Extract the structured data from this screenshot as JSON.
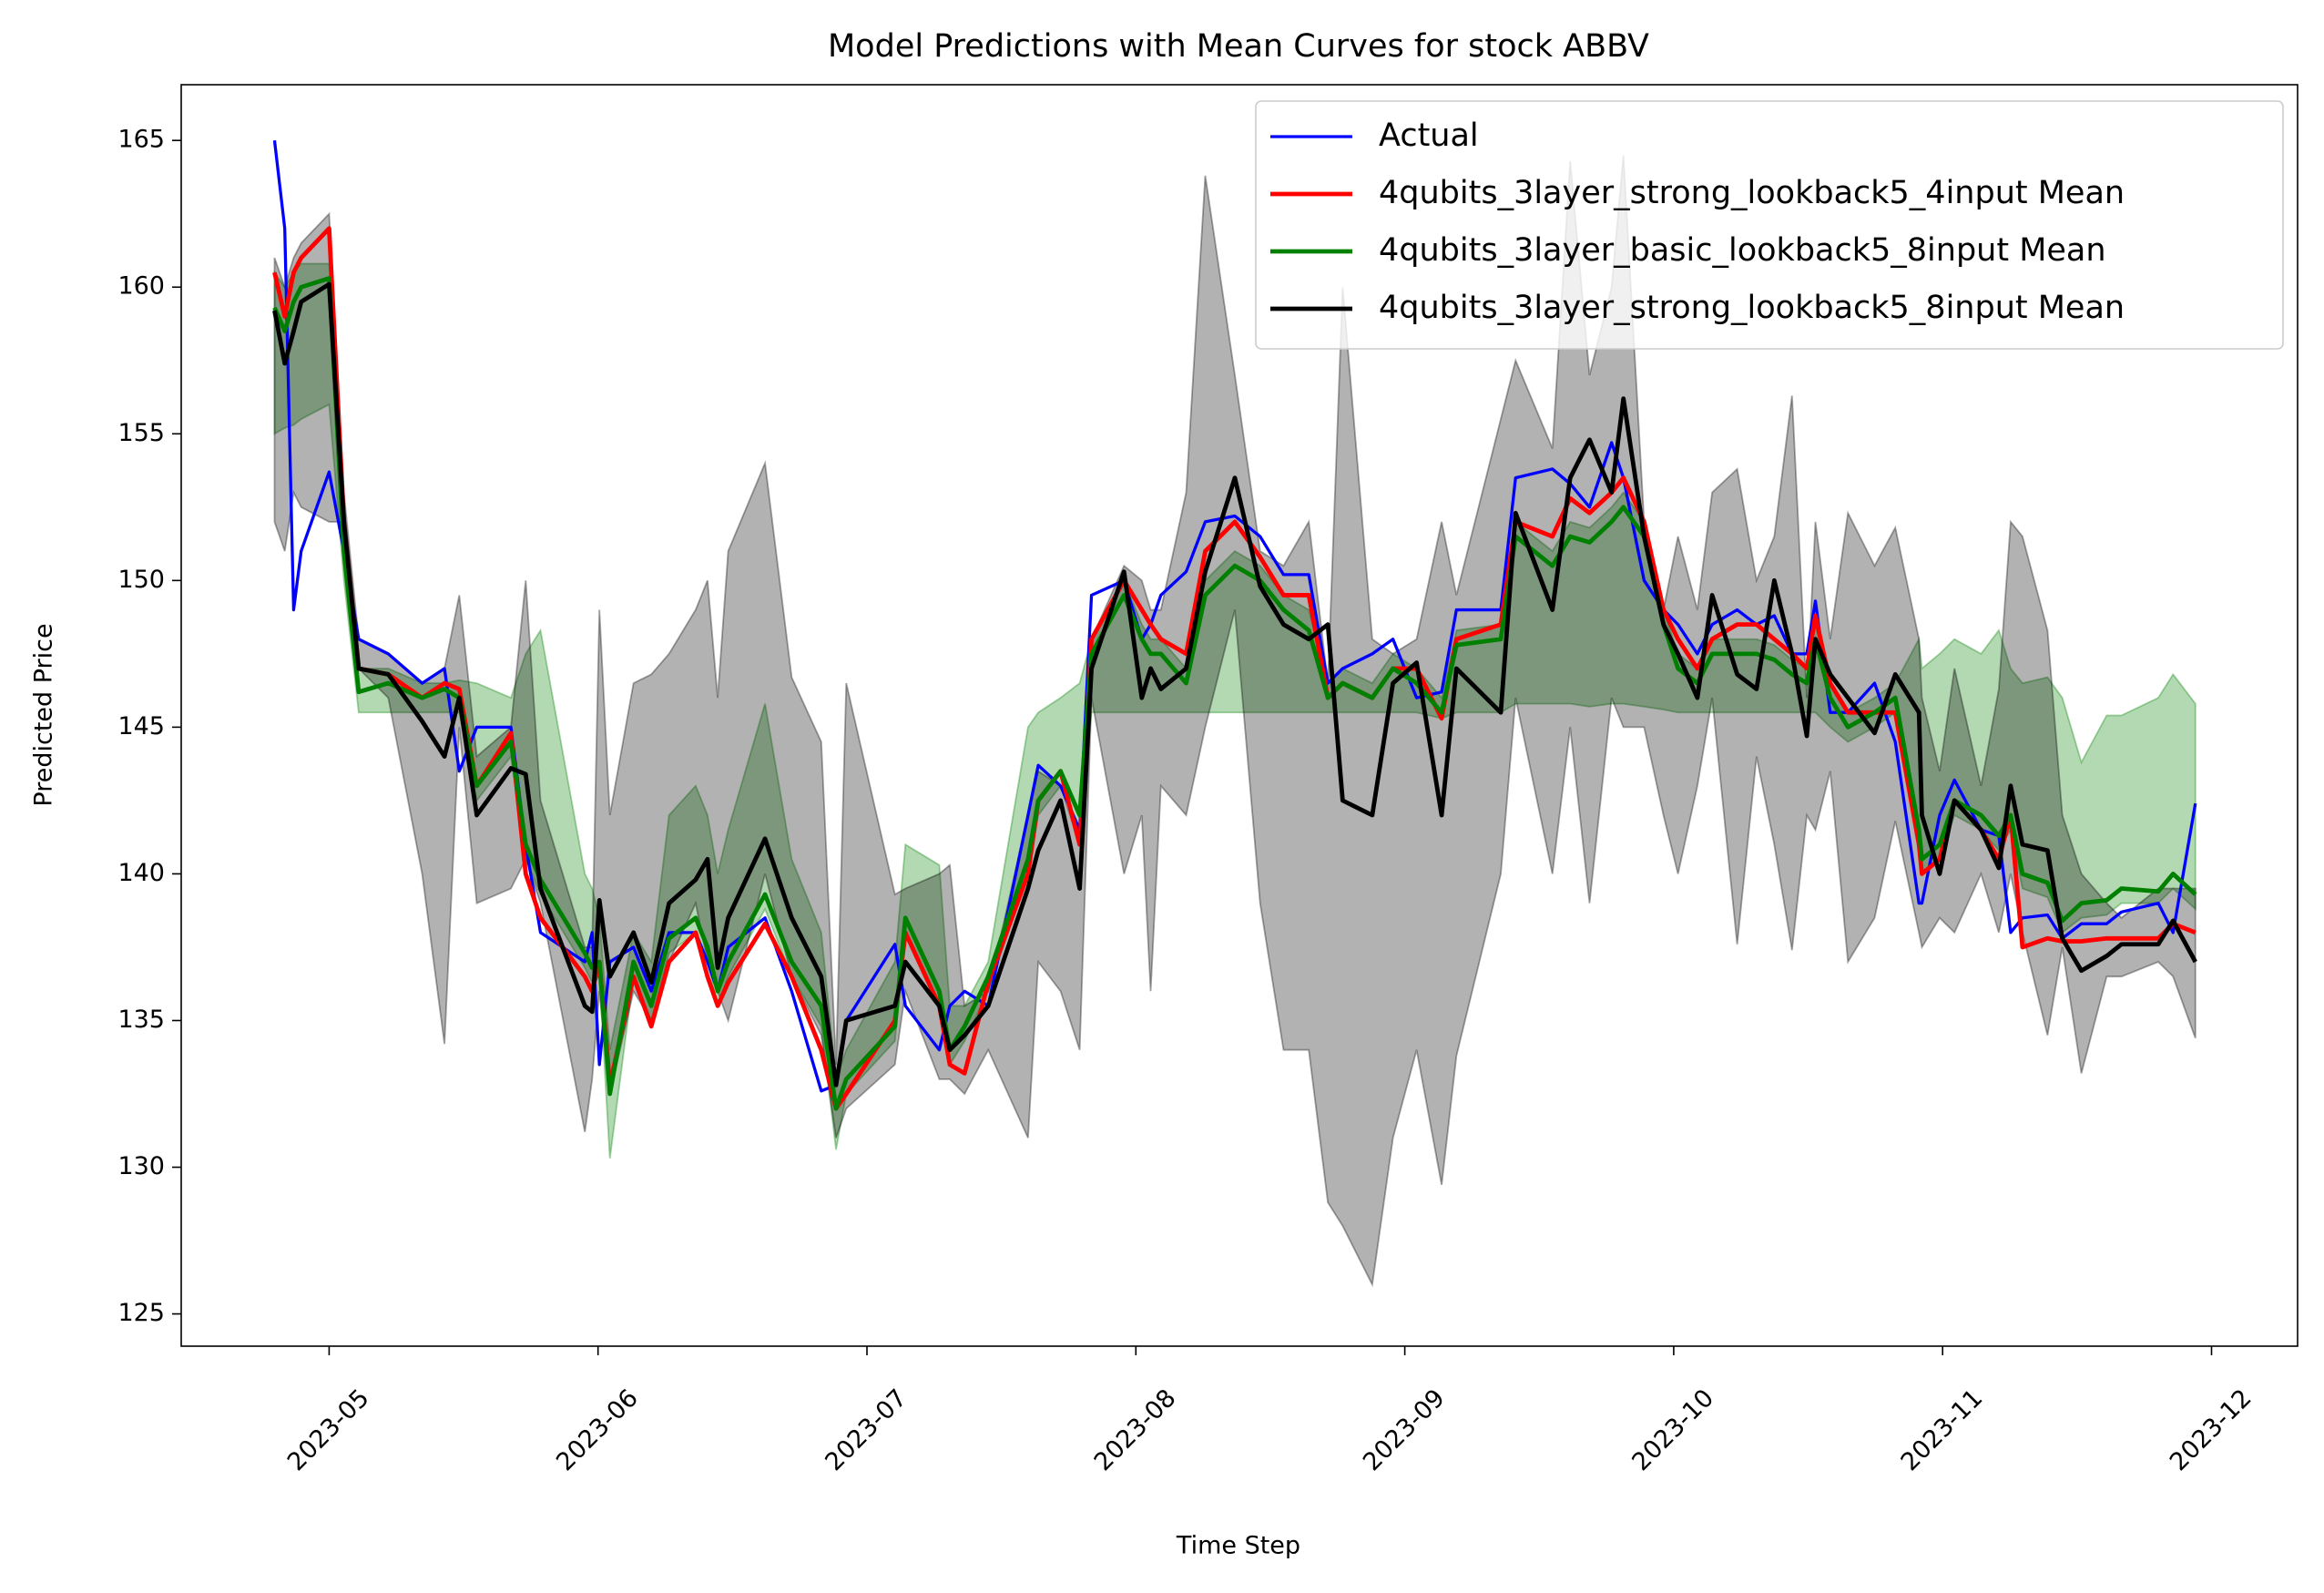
{
  "chart_data": {
    "type": "line",
    "title": "Model Predictions with Mean Curves for stock ABBV",
    "xlabel": "Time Step",
    "ylabel": "Predicted Price",
    "x": [
      4.797,
      4.835,
      4.868,
      4.896,
      5.0,
      5.055,
      5.11,
      5.22,
      5.346,
      5.429,
      5.484,
      5.549,
      5.676,
      5.731,
      5.786,
      5.951,
      5.978,
      6.005,
      6.044,
      6.132,
      6.198,
      6.264,
      6.363,
      6.407,
      6.445,
      6.484,
      6.621,
      6.72,
      6.83,
      6.885,
      6.923,
      7.104,
      7.143,
      7.269,
      7.308,
      7.363,
      7.451,
      7.599,
      7.637,
      7.72,
      7.791,
      7.835,
      7.956,
      8.022,
      8.055,
      8.093,
      8.187,
      8.258,
      8.368,
      8.462,
      8.549,
      8.643,
      8.714,
      8.769,
      8.879,
      8.956,
      9.044,
      9.137,
      9.192,
      9.357,
      9.412,
      9.549,
      9.615,
      9.687,
      9.769,
      9.813,
      9.89,
      9.962,
      10.016,
      10.088,
      10.143,
      10.236,
      10.308,
      10.374,
      10.44,
      10.495,
      10.527,
      10.582,
      10.648,
      10.747,
      10.824,
      10.912,
      10.923,
      10.989,
      11.044,
      11.143,
      11.209,
      11.253,
      11.297,
      11.39,
      11.445,
      11.516,
      11.61,
      11.665,
      11.802,
      11.857,
      11.94
    ],
    "xlim": [
      4.45,
      12.32
    ],
    "xticks": [
      {
        "value": 5,
        "label": "2023-05"
      },
      {
        "value": 6,
        "label": "2023-06"
      },
      {
        "value": 7,
        "label": "2023-07"
      },
      {
        "value": 8,
        "label": "2023-08"
      },
      {
        "value": 9,
        "label": "2023-09"
      },
      {
        "value": 10,
        "label": "2023-10"
      },
      {
        "value": 11,
        "label": "2023-11"
      },
      {
        "value": 12,
        "label": "2023-12"
      }
    ],
    "ylim": [
      123.9,
      166.9
    ],
    "yticks": [
      125,
      130,
      135,
      140,
      145,
      150,
      155,
      160,
      165
    ],
    "legend": "upper right",
    "series": [
      {
        "name": "Actual",
        "color": "#0000ff",
        "values": [
          165,
          162,
          149,
          151,
          153.7,
          151,
          148,
          147.5,
          146.5,
          147,
          143.5,
          145,
          145,
          141,
          138,
          137,
          138,
          133.5,
          137,
          137.5,
          136,
          138,
          138,
          137,
          136,
          137.5,
          138.5,
          136,
          132.6,
          132.8,
          135,
          137.6,
          135.5,
          134,
          135.5,
          136,
          135.5,
          142,
          143.7,
          143,
          141.5,
          149.5,
          150,
          148,
          148.5,
          149.5,
          150.3,
          152,
          152.2,
          151.5,
          150.2,
          150.2,
          146.5,
          147,
          147.5,
          148,
          146,
          146.2,
          149,
          149,
          153.5,
          153.8,
          153.3,
          152.5,
          154.7,
          153.5,
          150,
          149,
          148.5,
          147.5,
          148.5,
          149,
          148.5,
          148.8,
          147.5,
          147.5,
          149.3,
          145.5,
          145.5,
          146.5,
          144.5,
          139,
          139,
          142,
          143.2,
          141.5,
          141.3,
          138,
          138.5,
          138.6,
          137.8,
          138.3,
          138.3,
          138.7,
          139,
          138,
          142.4
        ]
      },
      {
        "name": "4qubits_3layer_strong_lookback5_4input Mean",
        "color": "#ff0000",
        "values": [
          160.5,
          159,
          160.5,
          161,
          162,
          152,
          147,
          146.8,
          146,
          146.5,
          146.3,
          143,
          144.8,
          140,
          138.5,
          136.5,
          136,
          137,
          132.8,
          136.5,
          134.8,
          137,
          138,
          136.5,
          135.5,
          136.3,
          138.3,
          136.5,
          134,
          132,
          132.5,
          135,
          138,
          135.5,
          133.5,
          133.2,
          136.3,
          140,
          142.5,
          143.5,
          141,
          148,
          150,
          149,
          148.5,
          148,
          147.5,
          151,
          152,
          150.8,
          149.5,
          149.5,
          146,
          146.5,
          146,
          147,
          147,
          145.3,
          148,
          148.5,
          152,
          151.5,
          152.8,
          152.3,
          153,
          153.5,
          152,
          149,
          148,
          147,
          148,
          148.5,
          148.5,
          148,
          147.5,
          147,
          148.8,
          146.5,
          145.5,
          145.5,
          145.5,
          141,
          140,
          140.5,
          142.5,
          141.5,
          140.5,
          142,
          137.5,
          137.8,
          137.7,
          137.7,
          137.8,
          137.8,
          137.8,
          138.3,
          138
        ]
      },
      {
        "name": "4qubits_3layer_basic_lookback5_8input Mean",
        "color": "#008000",
        "values": [
          159.3,
          158.5,
          159.5,
          160,
          160.3,
          151,
          146.2,
          146.5,
          146,
          146.3,
          146,
          143,
          144.5,
          141,
          139.8,
          137.3,
          136.8,
          137,
          132.5,
          137,
          135.5,
          137.8,
          138.5,
          137.5,
          136,
          137,
          139.3,
          137,
          135.5,
          132,
          133,
          134.8,
          138.5,
          136,
          134,
          134.8,
          136.5,
          140.5,
          142.5,
          143.5,
          142,
          147.5,
          149.5,
          148,
          147.5,
          147.5,
          146.5,
          149.5,
          150.5,
          150,
          149,
          148.3,
          146,
          146.5,
          146,
          147,
          146.5,
          145.5,
          147.8,
          148,
          151.5,
          150.5,
          151.5,
          151.3,
          152,
          152.5,
          151.5,
          148.5,
          147,
          146.5,
          147.5,
          147.5,
          147.5,
          147.3,
          146.8,
          146.5,
          148,
          146,
          145,
          145.5,
          146,
          141.5,
          140.5,
          141,
          142.5,
          142,
          141.3,
          142,
          140,
          139.7,
          138.4,
          139,
          139.1,
          139.5,
          139.4,
          140,
          139.3
        ],
        "lower": [
          155,
          155.2,
          155.3,
          155.5,
          156,
          150,
          145.5,
          145.5,
          145.5,
          145.5,
          145.5,
          142.5,
          144,
          140.5,
          139.3,
          136.8,
          136.3,
          136.5,
          130.3,
          136.5,
          135,
          137.3,
          138,
          137,
          135.5,
          136.5,
          138.8,
          136.5,
          134.8,
          130.6,
          132.5,
          134.3,
          138,
          135.5,
          133.5,
          134.3,
          136,
          140,
          142,
          143,
          141.5,
          145.5,
          145.5,
          145.5,
          145.5,
          145.5,
          145.5,
          145.5,
          145.5,
          145.5,
          145.5,
          145.5,
          145.5,
          145.5,
          145.5,
          145.5,
          145.5,
          145.3,
          145.5,
          145.5,
          145.8,
          145.8,
          145.8,
          145.7,
          145.8,
          145.8,
          145.7,
          145.6,
          145.5,
          145.5,
          145.5,
          145.5,
          145.5,
          145.5,
          145.5,
          145.5,
          145.5,
          145,
          144.5,
          145,
          145.5,
          141,
          140,
          140.5,
          142,
          141.5,
          140.8,
          141.5,
          139.5,
          139.2,
          138,
          138.5,
          138.6,
          139,
          139,
          139.5,
          138.8
        ],
        "upper": [
          160.5,
          160,
          160.5,
          160.8,
          160.8,
          152,
          147,
          147,
          146.5,
          146.5,
          146.6,
          146.5,
          146,
          147.5,
          148.3,
          140,
          139.5,
          138.5,
          134,
          138,
          137,
          142,
          143,
          142,
          140,
          141.5,
          145.8,
          140.5,
          138,
          133,
          134,
          137,
          141,
          140.3,
          135.5,
          135.5,
          137,
          145,
          145.5,
          146,
          146.5,
          148,
          150,
          148.5,
          148,
          148,
          147,
          150,
          151,
          150.5,
          149.5,
          149,
          146.5,
          147,
          146.5,
          147.5,
          147,
          146,
          148.3,
          148.5,
          152,
          151,
          152,
          151.8,
          152.5,
          153,
          152,
          149,
          147.5,
          147,
          148,
          148,
          148,
          147.8,
          147.3,
          147,
          148.5,
          146.5,
          145.5,
          146,
          146.5,
          148,
          147,
          147.5,
          148,
          147.5,
          148.3,
          147,
          146.5,
          146.7,
          146,
          143.8,
          145.4,
          145.4,
          146,
          146.8,
          145.8
        ]
      },
      {
        "name": "4qubits_3layer_strong_lookback5_8input Mean",
        "color": "#000000",
        "values": [
          159.2,
          157.4,
          158.5,
          159.5,
          160.1,
          152,
          147,
          146.8,
          145.2,
          144,
          146,
          142,
          143.6,
          143.4,
          139.5,
          135.5,
          135.3,
          139.1,
          136.5,
          138,
          136.3,
          139,
          139.8,
          140.5,
          136.8,
          138.5,
          141.2,
          138.5,
          136.5,
          132.8,
          135,
          135.5,
          137,
          135.5,
          134,
          134.5,
          135.5,
          139.5,
          140.8,
          142.5,
          139.5,
          147,
          150.3,
          146,
          147,
          146.3,
          147,
          150.3,
          153.5,
          149.8,
          148.5,
          148,
          148.5,
          142.5,
          142,
          146.5,
          147.2,
          142,
          147,
          145.5,
          152.3,
          149,
          153.5,
          154.8,
          153,
          156.2,
          151.5,
          148.5,
          147.5,
          146,
          149.5,
          146.8,
          146.3,
          150,
          147.5,
          144.7,
          148,
          146.8,
          146,
          144.8,
          146.8,
          145.5,
          142,
          140,
          142.5,
          141.5,
          140.2,
          143,
          141,
          140.8,
          137.8,
          136.7,
          137.2,
          137.6,
          137.6,
          138.4,
          137
        ],
        "lower": [
          152,
          151,
          153,
          152.5,
          152,
          152,
          147,
          146,
          140,
          134.2,
          145,
          139,
          139.5,
          140.5,
          139,
          131.2,
          133,
          136,
          132.5,
          136,
          135,
          137,
          139,
          137,
          136,
          135,
          140,
          136.5,
          134.5,
          131,
          132,
          133.5,
          136,
          133,
          133,
          132.5,
          134,
          131,
          137,
          136,
          134,
          146,
          140,
          142,
          136,
          143,
          142,
          145,
          149,
          139,
          134,
          134,
          128.8,
          128,
          126,
          131,
          134,
          129.4,
          133.8,
          140,
          146,
          140,
          145,
          139,
          146,
          145,
          145,
          142,
          140,
          143,
          146,
          137.6,
          144,
          141,
          137.4,
          142,
          141.5,
          143.5,
          137,
          138.5,
          141.8,
          138,
          137.5,
          138.5,
          138,
          140,
          138,
          140,
          138,
          134.5,
          137.5,
          133.2,
          136.5,
          136.5,
          137,
          136.5,
          134.4
        ],
        "upper": [
          161,
          160,
          161,
          161.5,
          162.5,
          153,
          148,
          147.5,
          146.5,
          147,
          149.5,
          144,
          145,
          150,
          142.5,
          137.5,
          137.5,
          149,
          142,
          146.5,
          146.8,
          147.5,
          149,
          150,
          146,
          151,
          154,
          146.7,
          144.5,
          133.5,
          146.5,
          139.3,
          139.5,
          140,
          140.3,
          135.5,
          136,
          142,
          143.5,
          143,
          141,
          148,
          150.5,
          150,
          149,
          149,
          153,
          163.8,
          157,
          151,
          150.5,
          152,
          146.5,
          160,
          148,
          147.5,
          148,
          152,
          149.5,
          155.5,
          157.5,
          154.5,
          164.3,
          157,
          160,
          164.5,
          152,
          149,
          151.5,
          149,
          153,
          153.8,
          150,
          151.5,
          156.3,
          146,
          152,
          148,
          152.3,
          150.5,
          151.8,
          148,
          146,
          143.5,
          147,
          143,
          146.3,
          152,
          151.5,
          148.3,
          142,
          140,
          139,
          138.5,
          139.5,
          139.5,
          139.5
        ]
      }
    ]
  }
}
